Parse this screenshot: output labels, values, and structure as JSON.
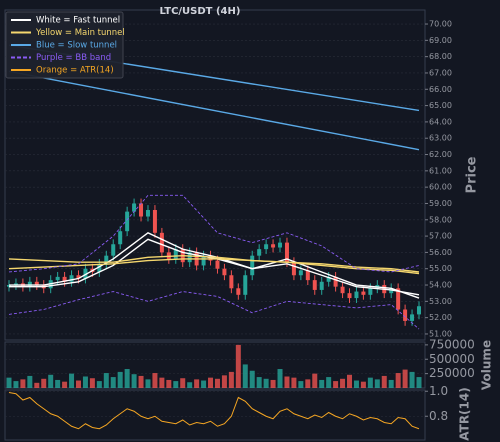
{
  "chart_data": {
    "type": "candlestick",
    "title": "LTC/USDT (4H)",
    "y_label": "Price",
    "up_color": "#26a69a",
    "down_color": "#ef5350",
    "grid": true,
    "ylim": [
      50.63,
      70.86
    ],
    "yticks": [
      {
        "value": 51,
        "label": "51.00"
      },
      {
        "value": 52,
        "label": "52.00"
      },
      {
        "value": 53,
        "label": "53.00"
      },
      {
        "value": 54,
        "label": "54.00"
      },
      {
        "value": 55,
        "label": "55.00"
      },
      {
        "value": 56,
        "label": "56.00"
      },
      {
        "value": 57,
        "label": "57.00"
      },
      {
        "value": 58,
        "label": "58.00"
      },
      {
        "value": 59,
        "label": "59.00"
      },
      {
        "value": 60,
        "label": "60.00"
      },
      {
        "value": 61,
        "label": "61.00"
      },
      {
        "value": 62,
        "label": "62.00"
      },
      {
        "value": 63,
        "label": "63.00"
      },
      {
        "value": 64,
        "label": "64.00"
      },
      {
        "value": 65,
        "label": "65.00"
      },
      {
        "value": 66,
        "label": "66.00"
      },
      {
        "value": 67,
        "label": "67.00"
      },
      {
        "value": 68,
        "label": "68.00"
      },
      {
        "value": 69,
        "label": "69.00"
      },
      {
        "value": 70,
        "label": "70.00"
      }
    ],
    "open": [
      53.9,
      54.0,
      54.1,
      53.9,
      54.2,
      54.0,
      53.8,
      54.3,
      54.5,
      54.2,
      54.6,
      54.4,
      55.0,
      54.8,
      55.3,
      55.8,
      56.5,
      57.3,
      58.5,
      59.0,
      58.2,
      58.6,
      57.2,
      56.0,
      55.6,
      56.2,
      55.4,
      56.0,
      55.2,
      55.8,
      55.5,
      55.0,
      54.6,
      53.8,
      53.4,
      54.6,
      55.8,
      56.2,
      56.5,
      56.3,
      56.6,
      55.4,
      54.6,
      54.9,
      54.3,
      53.7,
      54.2,
      54.5,
      53.9,
      53.5,
      53.2,
      53.6,
      53.4,
      53.8,
      54.0,
      53.5,
      53.8,
      52.5,
      51.8,
      52.2
    ],
    "high": [
      54.3,
      54.4,
      54.4,
      54.5,
      54.5,
      54.3,
      54.6,
      54.8,
      54.8,
      54.9,
      54.9,
      55.3,
      55.3,
      55.6,
      56.1,
      56.8,
      57.6,
      58.8,
      59.3,
      59.3,
      58.9,
      58.9,
      57.5,
      56.3,
      56.5,
      56.5,
      56.3,
      56.3,
      56.1,
      56.1,
      55.8,
      55.3,
      54.9,
      54.1,
      54.9,
      56.1,
      56.5,
      56.8,
      56.8,
      56.9,
      56.9,
      55.7,
      55.2,
      55.2,
      54.6,
      54.5,
      54.8,
      54.8,
      54.2,
      53.8,
      53.9,
      53.9,
      54.1,
      54.3,
      54.3,
      54.1,
      54.1,
      52.8,
      52.5,
      53.0
    ],
    "low": [
      53.6,
      53.7,
      53.6,
      53.6,
      53.7,
      53.5,
      53.5,
      54.0,
      53.9,
      53.9,
      54.1,
      54.1,
      54.5,
      54.5,
      55.0,
      55.5,
      56.2,
      57.0,
      58.2,
      57.9,
      57.9,
      56.9,
      55.7,
      55.3,
      55.3,
      55.1,
      55.1,
      54.9,
      54.9,
      55.2,
      54.7,
      54.3,
      53.5,
      53.1,
      53.1,
      54.3,
      55.5,
      55.9,
      56.0,
      56.0,
      55.1,
      54.3,
      54.3,
      54.0,
      53.4,
      53.4,
      53.9,
      53.6,
      53.2,
      52.9,
      52.9,
      53.1,
      53.1,
      53.5,
      53.2,
      53.2,
      52.2,
      51.5,
      51.5,
      51.9
    ],
    "close": [
      54.0,
      54.1,
      53.9,
      54.2,
      54.0,
      53.8,
      54.3,
      54.5,
      54.2,
      54.6,
      54.4,
      55.0,
      54.8,
      55.3,
      55.8,
      56.5,
      57.3,
      58.5,
      59.0,
      58.2,
      58.6,
      57.2,
      56.0,
      55.6,
      56.2,
      55.4,
      56.0,
      55.2,
      55.8,
      55.5,
      55.0,
      54.6,
      53.8,
      53.4,
      54.6,
      55.8,
      56.2,
      56.5,
      56.3,
      56.6,
      55.4,
      54.6,
      54.9,
      54.3,
      53.7,
      54.2,
      54.5,
      53.9,
      53.5,
      53.2,
      53.6,
      53.4,
      53.8,
      54.0,
      53.5,
      53.8,
      52.5,
      51.8,
      52.2,
      52.7
    ],
    "legend": [
      {
        "label": "White = Fast tunnel",
        "color": "#ffffff",
        "dashed": false
      },
      {
        "label": "Yellow = Main tunnel",
        "color": "#f5d76e",
        "dashed": false
      },
      {
        "label": "Blue = Slow tunnel",
        "color": "#5aa9e6",
        "dashed": false
      },
      {
        "label": "Purple = BB band",
        "color": "#8a5cf5",
        "dashed": true
      },
      {
        "label": "Orange = ATR(14)",
        "color": "#f5a623",
        "dashed": false
      }
    ],
    "overlays": [
      {
        "color": "#ffffff",
        "dashed": false,
        "x": [
          0,
          5,
          10,
          15,
          20,
          25,
          30,
          35,
          40,
          45,
          50,
          55,
          59
        ],
        "values": [
          54.0,
          54.0,
          54.4,
          55.6,
          57.2,
          56.2,
          55.7,
          55.0,
          55.6,
          54.8,
          54.0,
          53.8,
          53.2
        ]
      },
      {
        "color": "#ffffff",
        "dashed": false,
        "x": [
          0,
          5,
          10,
          15,
          20,
          25,
          30,
          35,
          40,
          45,
          50,
          55,
          59
        ],
        "values": [
          53.9,
          53.9,
          54.2,
          55.2,
          56.8,
          56.0,
          55.6,
          55.0,
          55.3,
          54.6,
          53.9,
          53.7,
          53.4
        ]
      },
      {
        "color": "#f5d76e",
        "dashed": false,
        "x": [
          0,
          5,
          10,
          15,
          20,
          25,
          30,
          35,
          40,
          45,
          50,
          55,
          59
        ],
        "values": [
          55.6,
          55.5,
          55.4,
          55.4,
          55.7,
          55.8,
          55.7,
          55.5,
          55.4,
          55.3,
          55.1,
          55.0,
          54.8
        ]
      },
      {
        "color": "#f5d76e",
        "dashed": false,
        "x": [
          0,
          5,
          10,
          15,
          20,
          25,
          30,
          35,
          40,
          45,
          50,
          55,
          59
        ],
        "values": [
          55.0,
          55.1,
          55.2,
          55.3,
          55.5,
          55.6,
          55.6,
          55.5,
          55.4,
          55.2,
          55.0,
          54.9,
          54.7
        ]
      },
      {
        "color": "#5aa9e6",
        "dashed": false,
        "x": [
          0,
          59
        ],
        "values": [
          68.7,
          64.7
        ]
      },
      {
        "color": "#5aa9e6",
        "dashed": false,
        "x": [
          0,
          59
        ],
        "values": [
          67.1,
          62.3
        ]
      },
      {
        "color": "#8a5cf5",
        "dashed": true,
        "x": [
          0,
          5,
          10,
          15,
          20,
          25,
          30,
          35,
          40,
          45,
          50,
          55,
          59
        ],
        "values": [
          54.8,
          55.0,
          55.3,
          57.0,
          59.5,
          59.5,
          57.2,
          56.6,
          57.2,
          56.4,
          55.0,
          54.8,
          55.2
        ]
      },
      {
        "color": "#8a5cf5",
        "dashed": true,
        "x": [
          0,
          5,
          10,
          15,
          20,
          25,
          30,
          35,
          40,
          45,
          50,
          55,
          59
        ],
        "values": [
          52.2,
          52.5,
          53.1,
          53.6,
          53.0,
          53.6,
          53.3,
          52.3,
          53.0,
          52.8,
          52.6,
          52.8,
          51.3
        ]
      }
    ],
    "volume": {
      "y_label": "Volume",
      "ylim": [
        0,
        800000
      ],
      "yticks": [
        250000,
        500000,
        750000
      ],
      "values": [
        180000,
        120000,
        150000,
        210000,
        90000,
        160000,
        230000,
        140000,
        110000,
        250000,
        130000,
        200000,
        170000,
        120000,
        260000,
        190000,
        280000,
        330000,
        240000,
        210000,
        150000,
        260000,
        180000,
        140000,
        120000,
        170000,
        100000,
        150000,
        130000,
        180000,
        160000,
        220000,
        280000,
        750000,
        410000,
        300000,
        190000,
        160000,
        140000,
        330000,
        200000,
        180000,
        120000,
        150000,
        250000,
        140000,
        190000,
        120000,
        160000,
        230000,
        130000,
        110000,
        180000,
        150000,
        210000,
        140000,
        260000,
        320000,
        280000,
        190000
      ]
    },
    "atr": {
      "y_label": "ATR(14)",
      "color": "#f5a623",
      "ylim": [
        0.61,
        1.01
      ],
      "yticks": [
        {
          "value": 1,
          "label": "1.0"
        },
        0.8
      ],
      "values": [
        0.99,
        0.98,
        0.93,
        0.95,
        0.9,
        0.86,
        0.82,
        0.8,
        0.76,
        0.72,
        0.7,
        0.74,
        0.71,
        0.7,
        0.73,
        0.78,
        0.82,
        0.86,
        0.84,
        0.8,
        0.78,
        0.8,
        0.76,
        0.75,
        0.74,
        0.77,
        0.73,
        0.75,
        0.74,
        0.76,
        0.72,
        0.74,
        0.8,
        0.95,
        0.92,
        0.86,
        0.83,
        0.8,
        0.78,
        0.84,
        0.86,
        0.82,
        0.8,
        0.78,
        0.81,
        0.79,
        0.83,
        0.8,
        0.78,
        0.82,
        0.8,
        0.77,
        0.79,
        0.78,
        0.75,
        0.74,
        0.79,
        0.78,
        0.72,
        0.7
      ]
    }
  }
}
